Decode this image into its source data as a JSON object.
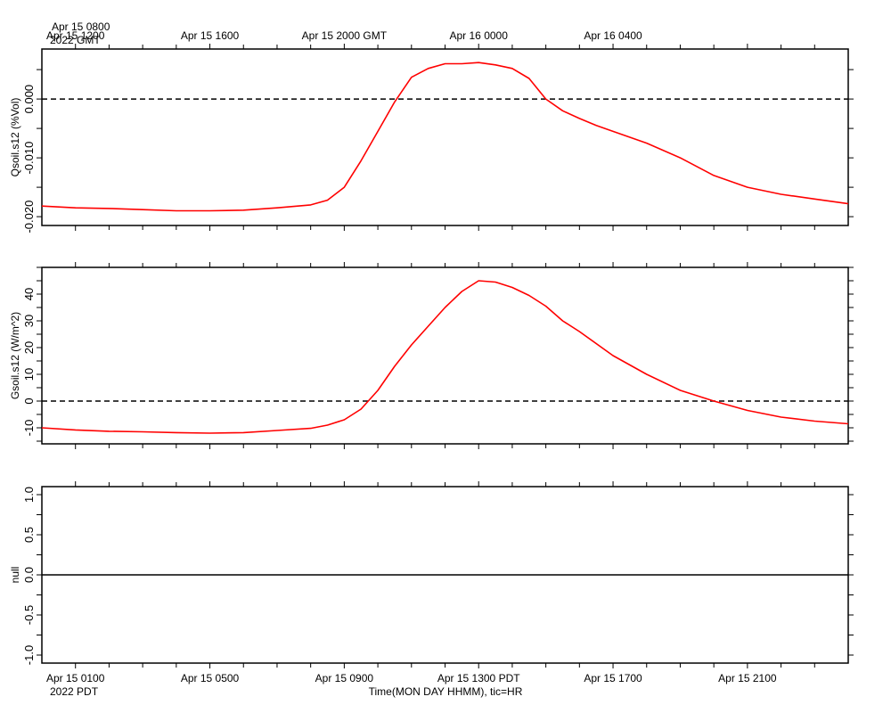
{
  "chart_data": [
    {
      "type": "line",
      "ylabel": "Qsoil.s12 (%Vol)",
      "ylim": [
        -0.0215,
        0.0085
      ],
      "yticks": [
        -0.02,
        -0.01,
        0.0
      ],
      "ytick_labels": [
        "-0.020",
        "-0.010",
        "0.000"
      ],
      "reference_line": {
        "y": 0,
        "style": "dashed"
      },
      "series": [
        {
          "color": "#ff0000",
          "x": [
            0,
            1,
            2,
            3,
            4,
            5,
            6,
            7,
            8,
            8.5,
            9,
            9.5,
            10,
            10.5,
            11,
            11.5,
            12,
            12.5,
            13,
            13.5,
            14,
            14.5,
            15,
            15.5,
            16,
            16.5,
            17,
            17.5,
            18,
            19,
            20,
            21,
            22,
            23,
            24
          ],
          "y": [
            -0.0182,
            -0.0185,
            -0.0186,
            -0.0188,
            -0.019,
            -0.019,
            -0.0189,
            -0.0185,
            -0.018,
            -0.0172,
            -0.015,
            -0.0105,
            -0.0055,
            -0.0005,
            0.0037,
            0.0052,
            0.006,
            0.006,
            0.0062,
            0.0058,
            0.0052,
            0.0035,
            0.0,
            -0.002,
            -0.0033,
            -0.0045,
            -0.0055,
            -0.0065,
            -0.0075,
            -0.01,
            -0.013,
            -0.015,
            -0.0162,
            -0.017,
            -0.0178
          ]
        }
      ]
    },
    {
      "type": "line",
      "ylabel": "Gsoil.s12 (W/m^2)",
      "ylim": [
        -16,
        50
      ],
      "yticks": [
        -10,
        0,
        10,
        20,
        30,
        40
      ],
      "ytick_labels": [
        "-10",
        "0",
        "10",
        "20",
        "30",
        "40"
      ],
      "reference_line": {
        "y": 0,
        "style": "dashed"
      },
      "series": [
        {
          "color": "#ff0000",
          "x": [
            0,
            1,
            2,
            3,
            4,
            5,
            6,
            7,
            8,
            8.5,
            9,
            9.5,
            10,
            10.5,
            11,
            11.5,
            12,
            12.5,
            13,
            13.5,
            14,
            14.5,
            15,
            15.5,
            16,
            17,
            18,
            19,
            20,
            21,
            22,
            23,
            24
          ],
          "y": [
            -10,
            -10.8,
            -11.3,
            -11.5,
            -11.8,
            -12,
            -11.8,
            -11,
            -10.2,
            -9,
            -7,
            -3,
            4,
            13,
            21,
            28,
            35,
            41,
            45,
            44.5,
            42.5,
            39.5,
            35.5,
            30,
            26,
            17,
            10,
            4,
            0,
            -3.5,
            -6,
            -7.5,
            -8.5
          ]
        }
      ]
    },
    {
      "type": "line",
      "ylabel": "null",
      "ylim": [
        -1.1,
        1.1
      ],
      "yticks": [
        -1.0,
        -0.5,
        0.0,
        0.5,
        1.0
      ],
      "ytick_labels": [
        "-1.0",
        "-0.5",
        "0.0",
        "0.5",
        "1.0"
      ],
      "reference_line": {
        "y": 0,
        "style": "solid"
      },
      "series": []
    }
  ],
  "axis_x": {
    "range_hours": [
      0,
      24
    ],
    "major_tick_hours": [
      1,
      5,
      9,
      13,
      17,
      21
    ],
    "top_labels": [
      "Apr 15 1200",
      "Apr 15 1600",
      "Apr 15 2000 GMT",
      "Apr 16 0000",
      "Apr 16 0400"
    ],
    "top_start_label": [
      "Apr 15 0800",
      "2022 GMT"
    ],
    "bottom_labels": [
      "Apr 15 0100",
      "Apr 15 0500",
      "Apr 15 0900",
      "Apr 15 1300 PDT",
      "Apr 15 1700",
      "Apr 15 2100"
    ],
    "bottom_start_year": "2022 PDT",
    "title": "Time(MON DAY HHMM), tic=HR"
  },
  "colors": {
    "series": "#ff0000",
    "axes": "#000000",
    "background": "#ffffff"
  }
}
